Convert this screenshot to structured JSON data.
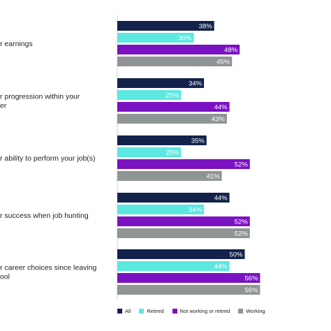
{
  "chart_data": {
    "type": "bar",
    "orientation": "horizontal",
    "categories": [
      [
        "r earnings"
      ],
      [
        "r progression within your",
        "er"
      ],
      [
        "r ability to perform your job(s)"
      ],
      [
        "r success when job hunting"
      ],
      [
        "r career choices since leaving",
        "ool"
      ]
    ],
    "series": [
      {
        "name": "All",
        "values": [
          38,
          34,
          35,
          44,
          50
        ],
        "labels": [
          "38%",
          "34%",
          "35%",
          "44%",
          "50%"
        ]
      },
      {
        "name": "Retired",
        "values": [
          30,
          25,
          25,
          34,
          44
        ],
        "labels": [
          "30%",
          "25%",
          "25%",
          "34%",
          "44%"
        ]
      },
      {
        "name": "Not working or retired",
        "values": [
          48,
          44,
          52,
          52,
          56
        ],
        "labels": [
          "48%",
          "44%",
          "52%",
          "52%",
          "56%"
        ]
      },
      {
        "name": "Working",
        "values": [
          45,
          43,
          41,
          52,
          56
        ],
        "labels": [
          "45%",
          "43%",
          "41%",
          "52%",
          "56%"
        ]
      }
    ],
    "colors": [
      "#13224a",
      "#5ce8e0",
      "#7a12c2",
      "#8f9494"
    ],
    "xlim": [
      0,
      100
    ],
    "value_labels": "inside-end",
    "legend_position": "bottom",
    "grid": false
  }
}
